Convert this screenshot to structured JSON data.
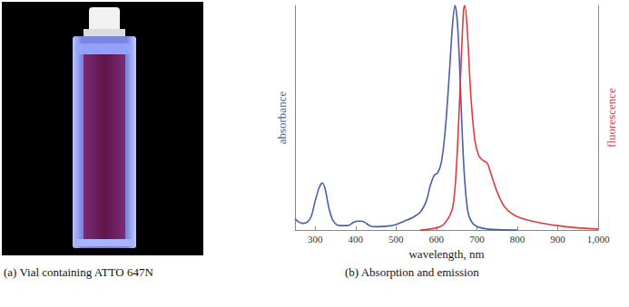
{
  "photo": {
    "caption": "(a) Vial containing ATTO 647N"
  },
  "chart_caption": "(b) Absorption and emission",
  "chart_data": {
    "type": "line",
    "x_label": "wavelength, nm",
    "y_label": "absorbance",
    "y2_label": "fluorescence",
    "xlim": [
      250,
      1000
    ],
    "xticks": [
      300,
      400,
      500,
      600,
      700,
      800,
      900,
      1000
    ],
    "ylim": [
      0,
      1
    ],
    "y2lim": [
      0,
      1
    ],
    "tick_labels": "x",
    "grid": false,
    "series": [
      {
        "name": "absorbance",
        "color": "#4a5fa8",
        "axis": "y",
        "x": [
          250,
          260,
          270,
          280,
          290,
          300,
          310,
          318,
          325,
          335,
          345,
          360,
          380,
          395,
          405,
          415,
          422,
          435,
          450,
          480,
          500,
          520,
          540,
          560,
          575,
          585,
          595,
          603,
          612,
          622,
          632,
          640,
          646,
          652,
          658,
          664,
          670,
          678,
          690,
          710,
          740,
          800
        ],
        "values": [
          0.05,
          0.035,
          0.03,
          0.035,
          0.06,
          0.13,
          0.19,
          0.21,
          0.18,
          0.09,
          0.04,
          0.02,
          0.02,
          0.035,
          0.04,
          0.04,
          0.035,
          0.02,
          0.015,
          0.018,
          0.025,
          0.04,
          0.055,
          0.08,
          0.13,
          0.2,
          0.245,
          0.255,
          0.3,
          0.45,
          0.7,
          0.92,
          1.0,
          0.92,
          0.7,
          0.42,
          0.22,
          0.08,
          0.03,
          0.01,
          0.003,
          0.0
        ]
      },
      {
        "name": "fluorescence",
        "color": "#e23a3a",
        "axis": "y2",
        "x": [
          560,
          600,
          620,
          640,
          650,
          660,
          667,
          670,
          676,
          685,
          695,
          705,
          715,
          725,
          735,
          750,
          770,
          800,
          850,
          900,
          950,
          1000
        ],
        "values": [
          0.0,
          0.01,
          0.03,
          0.1,
          0.3,
          0.7,
          0.98,
          1.0,
          0.9,
          0.6,
          0.4,
          0.33,
          0.31,
          0.3,
          0.25,
          0.17,
          0.1,
          0.06,
          0.035,
          0.02,
          0.01,
          0.005
        ]
      }
    ]
  }
}
